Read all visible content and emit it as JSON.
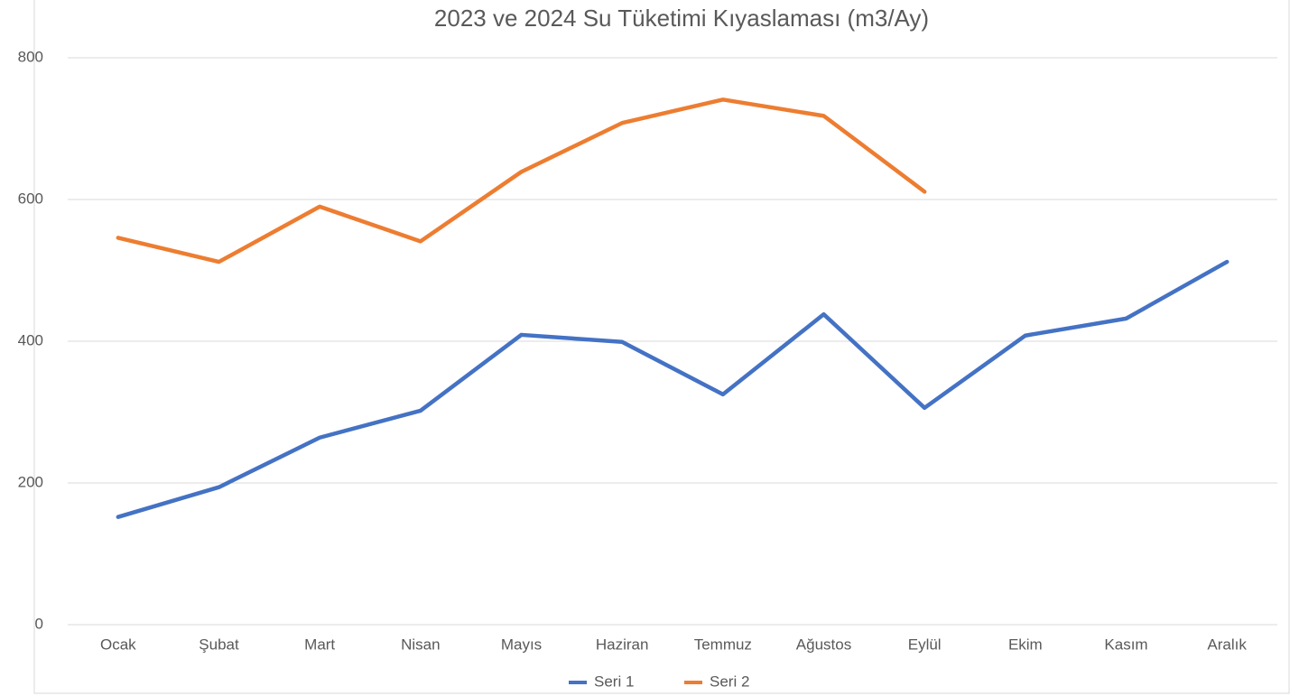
{
  "chart_data": {
    "type": "line",
    "title": "2023 ve 2024 Su Tüketimi Kıyaslaması (m3/Ay)",
    "categories": [
      "Ocak",
      "Şubat",
      "Mart",
      "Nisan",
      "Mayıs",
      "Haziran",
      "Temmuz",
      "Ağustos",
      "Eylül",
      "Ekim",
      "Kasım",
      "Aralık"
    ],
    "series": [
      {
        "name": "Seri 1",
        "color": "#4472c4",
        "values": [
          152,
          194,
          264,
          302,
          409,
          399,
          325,
          438,
          306,
          408,
          432,
          512
        ]
      },
      {
        "name": "Seri 2",
        "color": "#ed7d31",
        "values": [
          546,
          512,
          590,
          541,
          639,
          708,
          741,
          718,
          611,
          null,
          null,
          null
        ]
      }
    ],
    "ylim": [
      0,
      800
    ],
    "yticks": [
      0,
      200,
      400,
      600,
      800
    ],
    "grid": true,
    "legend": "bottom"
  }
}
